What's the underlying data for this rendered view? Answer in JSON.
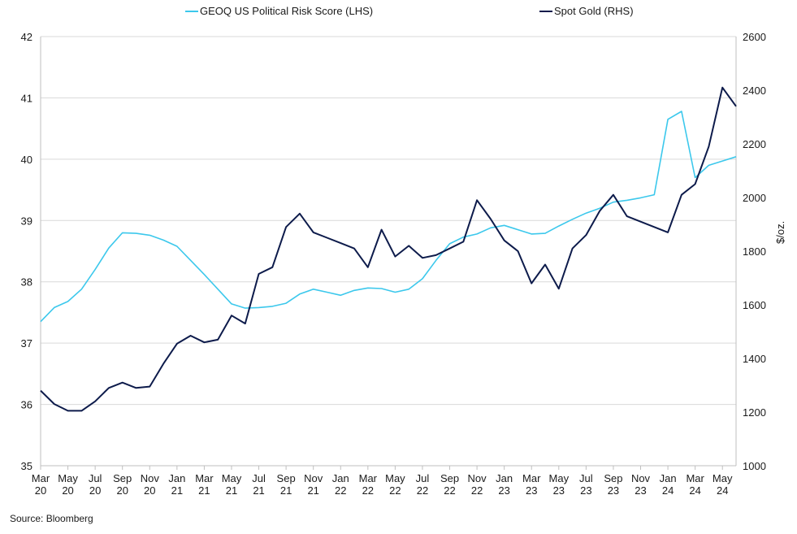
{
  "chart_data": {
    "type": "line",
    "title": "",
    "source": "Source: Bloomberg",
    "y_left": {
      "label": "",
      "lim": [
        35,
        42
      ],
      "ticks": [
        35,
        36,
        37,
        38,
        39,
        40,
        41,
        42
      ]
    },
    "y_right": {
      "label": "$/oz.",
      "lim": [
        1000,
        2600
      ],
      "ticks": [
        1000,
        1200,
        1400,
        1600,
        1800,
        2000,
        2200,
        2400,
        2600
      ]
    },
    "x_ticks": [
      {
        "top": "Mar",
        "bottom": "20"
      },
      {
        "top": "May",
        "bottom": "20"
      },
      {
        "top": "Jul",
        "bottom": "20"
      },
      {
        "top": "Sep",
        "bottom": "20"
      },
      {
        "top": "Nov",
        "bottom": "20"
      },
      {
        "top": "Jan",
        "bottom": "21"
      },
      {
        "top": "Mar",
        "bottom": "21"
      },
      {
        "top": "May",
        "bottom": "21"
      },
      {
        "top": "Jul",
        "bottom": "21"
      },
      {
        "top": "Sep",
        "bottom": "21"
      },
      {
        "top": "Nov",
        "bottom": "21"
      },
      {
        "top": "Jan",
        "bottom": "22"
      },
      {
        "top": "Mar",
        "bottom": "22"
      },
      {
        "top": "May",
        "bottom": "22"
      },
      {
        "top": "Jul",
        "bottom": "22"
      },
      {
        "top": "Sep",
        "bottom": "22"
      },
      {
        "top": "Nov",
        "bottom": "22"
      },
      {
        "top": "Jan",
        "bottom": "23"
      },
      {
        "top": "Mar",
        "bottom": "23"
      },
      {
        "top": "May",
        "bottom": "23"
      },
      {
        "top": "Jul",
        "bottom": "23"
      },
      {
        "top": "Sep",
        "bottom": "23"
      },
      {
        "top": "Nov",
        "bottom": "23"
      },
      {
        "top": "Jan",
        "bottom": "24"
      },
      {
        "top": "Mar",
        "bottom": "24"
      },
      {
        "top": "May",
        "bottom": "24"
      }
    ],
    "grid": "horizontal",
    "legend_position": "top",
    "series": [
      {
        "name": "GEOQ US Political Risk Score (LHS)",
        "axis": "left",
        "color": "#3cc8ec",
        "points": [
          [
            "2020-03",
            37.35
          ],
          [
            "2020-04",
            37.58
          ],
          [
            "2020-05",
            37.68
          ],
          [
            "2020-06",
            37.88
          ],
          [
            "2020-07",
            38.2
          ],
          [
            "2020-08",
            38.55
          ],
          [
            "2020-09",
            38.8
          ],
          [
            "2020-10",
            38.79
          ],
          [
            "2020-11",
            38.76
          ],
          [
            "2020-12",
            38.68
          ],
          [
            "2021-01",
            38.58
          ],
          [
            "2021-02",
            38.35
          ],
          [
            "2021-03",
            38.12
          ],
          [
            "2021-04",
            37.88
          ],
          [
            "2021-05",
            37.64
          ],
          [
            "2021-06",
            37.57
          ],
          [
            "2021-07",
            37.58
          ],
          [
            "2021-08",
            37.6
          ],
          [
            "2021-09",
            37.65
          ],
          [
            "2021-10",
            37.8
          ],
          [
            "2021-11",
            37.88
          ],
          [
            "2021-12",
            37.83
          ],
          [
            "2022-01",
            37.78
          ],
          [
            "2022-02",
            37.86
          ],
          [
            "2022-03",
            37.9
          ],
          [
            "2022-04",
            37.89
          ],
          [
            "2022-05",
            37.83
          ],
          [
            "2022-06",
            37.88
          ],
          [
            "2022-07",
            38.05
          ],
          [
            "2022-08",
            38.35
          ],
          [
            "2022-09",
            38.62
          ],
          [
            "2022-10",
            38.73
          ],
          [
            "2022-11",
            38.78
          ],
          [
            "2022-12",
            38.88
          ],
          [
            "2023-01",
            38.92
          ],
          [
            "2023-02",
            38.85
          ],
          [
            "2023-03",
            38.78
          ],
          [
            "2023-04",
            38.79
          ],
          [
            "2023-05",
            38.91
          ],
          [
            "2023-06",
            39.02
          ],
          [
            "2023-07",
            39.12
          ],
          [
            "2023-08",
            39.2
          ],
          [
            "2023-09",
            39.3
          ],
          [
            "2023-10",
            39.33
          ],
          [
            "2023-11",
            39.37
          ],
          [
            "2023-12",
            39.42
          ],
          [
            "2024-01",
            40.65
          ],
          [
            "2024-02",
            40.78
          ],
          [
            "2024-03",
            39.7
          ],
          [
            "2024-04",
            39.9
          ],
          [
            "2024-05",
            39.97
          ],
          [
            "2024-06",
            40.04
          ]
        ]
      },
      {
        "name": "Spot Gold (RHS)",
        "axis": "right",
        "color": "#0d1b4b",
        "points": [
          [
            "2020-03",
            1280
          ],
          [
            "2020-04",
            1230
          ],
          [
            "2020-05",
            1205
          ],
          [
            "2020-06",
            1205
          ],
          [
            "2020-07",
            1240
          ],
          [
            "2020-08",
            1290
          ],
          [
            "2020-09",
            1310
          ],
          [
            "2020-10",
            1290
          ],
          [
            "2020-11",
            1295
          ],
          [
            "2020-12",
            1380
          ],
          [
            "2021-01",
            1455
          ],
          [
            "2021-02",
            1485
          ],
          [
            "2021-03",
            1460
          ],
          [
            "2021-04",
            1470
          ],
          [
            "2021-05",
            1560
          ],
          [
            "2021-06",
            1530
          ],
          [
            "2021-07",
            1715
          ],
          [
            "2021-08",
            1740
          ],
          [
            "2021-09",
            1890
          ],
          [
            "2021-10",
            1940
          ],
          [
            "2021-11",
            1870
          ],
          [
            "2021-12",
            1850
          ],
          [
            "2022-01",
            1830
          ],
          [
            "2022-02",
            1810
          ],
          [
            "2022-03",
            1740
          ],
          [
            "2022-04",
            1880
          ],
          [
            "2022-05",
            1780
          ],
          [
            "2022-06",
            1820
          ],
          [
            "2022-07",
            1775
          ],
          [
            "2022-08",
            1785
          ],
          [
            "2022-09",
            1810
          ],
          [
            "2022-10",
            1835
          ],
          [
            "2022-11",
            1990
          ],
          [
            "2022-12",
            1920
          ],
          [
            "2023-01",
            1840
          ],
          [
            "2023-02",
            1800
          ],
          [
            "2023-03",
            1680
          ],
          [
            "2023-04",
            1750
          ],
          [
            "2023-05",
            1660
          ],
          [
            "2023-06",
            1810
          ],
          [
            "2023-07",
            1860
          ],
          [
            "2023-08",
            1950
          ],
          [
            "2023-09",
            2010
          ],
          [
            "2023-10",
            1930
          ],
          [
            "2023-11",
            1910
          ],
          [
            "2023-12",
            1890
          ],
          [
            "2024-01",
            1870
          ],
          [
            "2024-02",
            2010
          ],
          [
            "2024-03",
            2050
          ],
          [
            "2024-04",
            2190
          ],
          [
            "2024-05",
            2410
          ],
          [
            "2024-06",
            2340
          ]
        ]
      }
    ]
  }
}
